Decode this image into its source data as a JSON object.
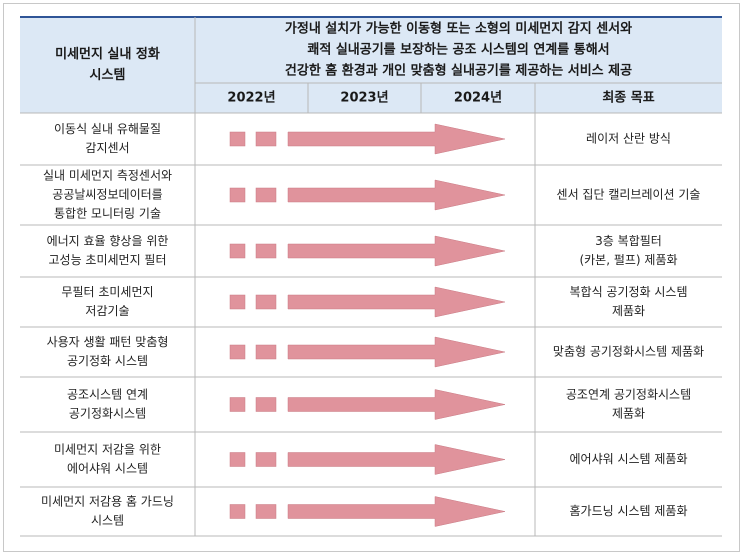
{
  "header": {
    "title": [
      "미세먼지 실내 정화",
      "시스템"
    ],
    "goal": [
      "가정내 설치가 가능한 이동형 또는 소형의 미세먼지 감지 센서와",
      "쾌적 실내공기를 보장하는 공조 시스템의 연계를 통해서",
      "건강한 홈 환경과 개인 맞춤형 실내공기를 제공하는 서비스 제공"
    ],
    "years": [
      "2022년",
      "2023년",
      "2024년"
    ],
    "final": "최종 목표"
  },
  "table": {
    "rows": [
      {
        "tech": [
          "이동식 실내 유해물질",
          "감지센서"
        ],
        "goal": [
          "레이저 산란 방식"
        ]
      },
      {
        "tech": [
          "실내 미세먼지 측정센서와",
          "공공날씨정보데이터를",
          "통합한 모니터링 기술"
        ],
        "goal": [
          "센서 집단 캘리브레이션 기술"
        ]
      },
      {
        "tech": [
          "에너지 효율 향상을 위한",
          "고성능 초미세먼지 필터"
        ],
        "goal": [
          "3층 복합필터",
          "(카본, 펄프) 제품화"
        ]
      },
      {
        "tech": [
          "무필터 초미세먼지",
          "저감기술"
        ],
        "goal": [
          "복합식 공기정화 시스템",
          "제품화"
        ]
      },
      {
        "tech": [
          "사용자 생활 패턴 맞춤형",
          "공기정화 시스템"
        ],
        "goal": [
          "맞춤형 공기정화시스템 제품화"
        ]
      },
      {
        "tech": [
          "공조시스템 연계",
          "공기정화시스템"
        ],
        "goal": [
          "공조연계 공기정화시스템",
          "제품화"
        ]
      },
      {
        "tech": [
          "미세먼지 저감을 위한",
          "에어샤워 시스템"
        ],
        "goal": [
          "에어샤워 시스템 제품화"
        ]
      },
      {
        "tech": [
          "미세먼지 저감용 홈 가드닝",
          "시스템"
        ],
        "goal": [
          "홈가드닝 시스템 제품화"
        ]
      }
    ]
  }
}
